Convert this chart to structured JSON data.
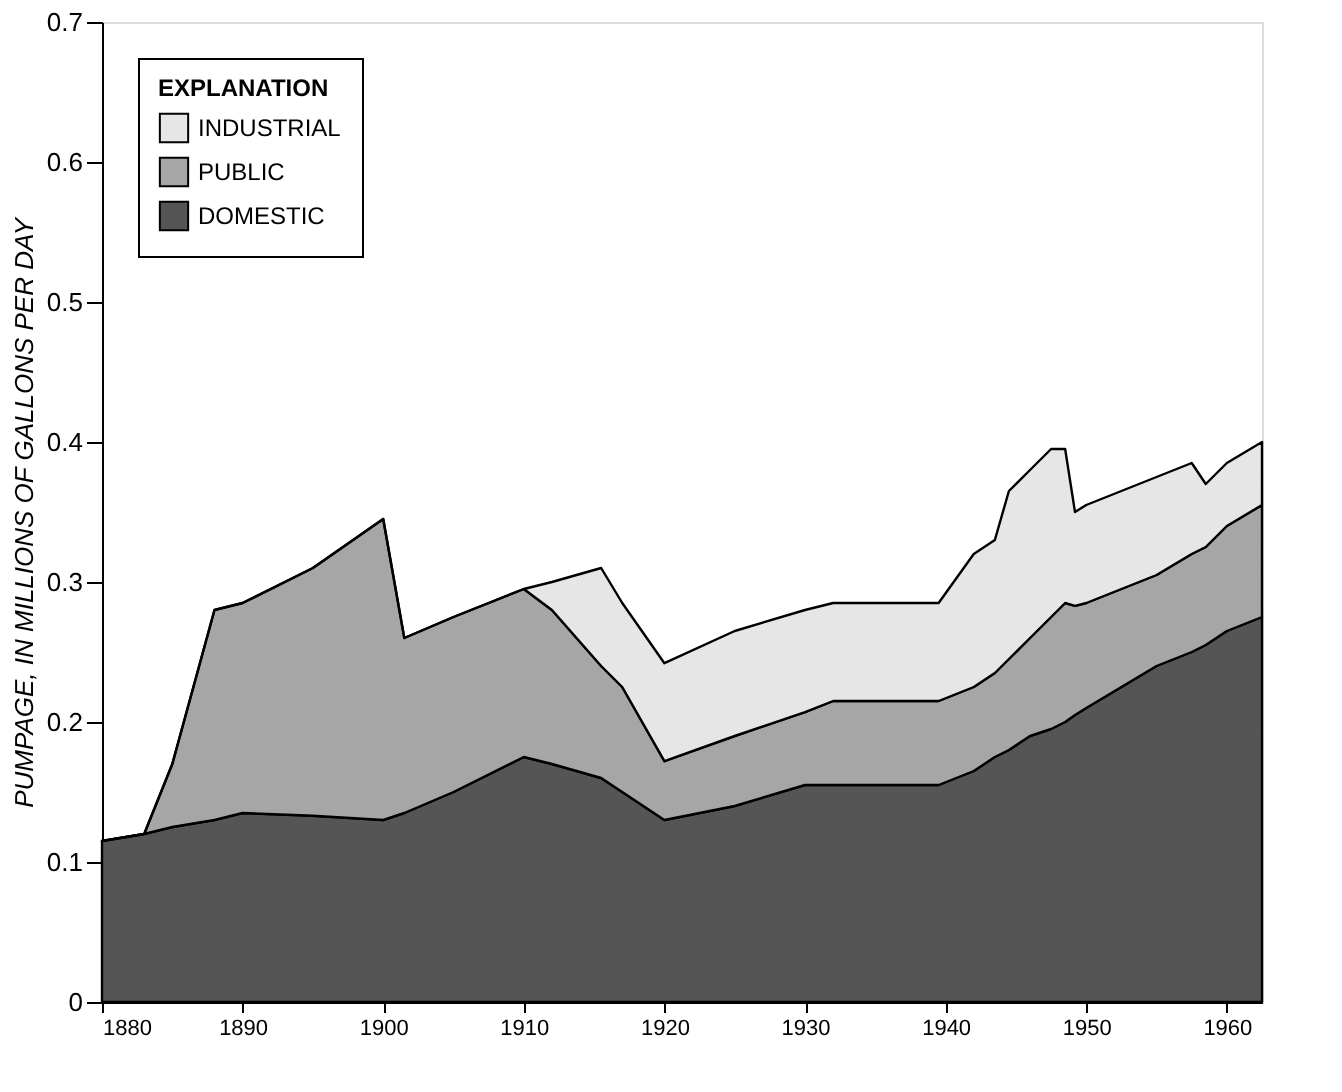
{
  "chart_data": {
    "type": "area",
    "stacked": true,
    "ylabel": "PUMPAGE, IN MILLIONS OF GALLONS PER DAY",
    "legend_title": "EXPLANATION",
    "legend": "top left",
    "grid": false,
    "x": [
      1880,
      1883,
      1885,
      1888,
      1890,
      1895,
      1900,
      1901.5,
      1905,
      1910,
      1912,
      1915.5,
      1917,
      1920,
      1925,
      1930,
      1932,
      1939.5,
      1942,
      1943.5,
      1944.5,
      1946,
      1947.5,
      1948.5,
      1949.2,
      1950,
      1955,
      1957.5,
      1958.5,
      1960,
      1962.5
    ],
    "xlim": [
      1880,
      1962.5
    ],
    "xticks": [
      1880,
      1890,
      1900,
      1910,
      1920,
      1930,
      1940,
      1950,
      1960
    ],
    "ylim": [
      0,
      0.7
    ],
    "yticks": [
      0,
      0.1,
      0.2,
      0.3,
      0.4,
      0.5,
      0.6,
      0.7
    ],
    "series": [
      {
        "name": "DOMESTIC",
        "color": "#555555",
        "values": [
          0.115,
          0.12,
          0.125,
          0.13,
          0.135,
          0.133,
          0.13,
          0.135,
          0.15,
          0.175,
          0.17,
          0.16,
          0.15,
          0.13,
          0.14,
          0.155,
          0.155,
          0.155,
          0.165,
          0.175,
          0.18,
          0.19,
          0.195,
          0.2,
          0.205,
          0.21,
          0.24,
          0.25,
          0.255,
          0.265,
          0.275
        ]
      },
      {
        "name": "PUBLIC",
        "color": "#a6a6a6",
        "values": [
          0,
          0,
          0.045,
          0.15,
          0.15,
          0.177,
          0.215,
          0.125,
          0.125,
          0.12,
          0.11,
          0.08,
          0.075,
          0.042,
          0.05,
          0.052,
          0.06,
          0.06,
          0.06,
          0.06,
          0.065,
          0.07,
          0.08,
          0.085,
          0.078,
          0.075,
          0.065,
          0.07,
          0.07,
          0.075,
          0.08
        ]
      },
      {
        "name": "INDUSTRIAL",
        "color": "#e6e6e6",
        "values": [
          0,
          0,
          0,
          0,
          0,
          0,
          0,
          0,
          0,
          0,
          0.02,
          0.07,
          0.06,
          0.07,
          0.075,
          0.073,
          0.07,
          0.07,
          0.095,
          0.095,
          0.12,
          0.12,
          0.12,
          0.11,
          0.067,
          0.07,
          0.07,
          0.065,
          0.045,
          0.045,
          0.045
        ]
      }
    ]
  }
}
